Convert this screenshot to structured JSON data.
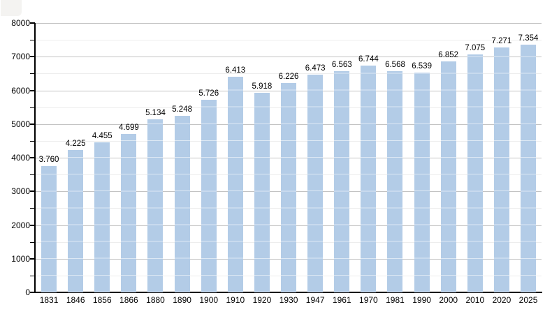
{
  "chart_data": {
    "type": "bar",
    "title": "",
    "xlabel": "",
    "ylabel": "",
    "categories": [
      "1831",
      "1846",
      "1856",
      "1866",
      "1880",
      "1890",
      "1900",
      "1910",
      "1920",
      "1930",
      "1947",
      "1961",
      "1970",
      "1981",
      "1990",
      "2000",
      "2010",
      "2020",
      "2025"
    ],
    "values": [
      3760,
      4225,
      4455,
      4699,
      5134,
      5248,
      5726,
      6413,
      5918,
      6226,
      6473,
      6563,
      6744,
      6568,
      6539,
      6852,
      7075,
      7271,
      7354
    ],
    "value_labels": [
      "3.760",
      "4.225",
      "4.455",
      "4.699",
      "5.134",
      "5.248",
      "5.726",
      "6.413",
      "5.918",
      "6.226",
      "6.473",
      "6.563",
      "6.744",
      "6.568",
      "6.539",
      "6.852",
      "7.075",
      "7.271",
      "7.354"
    ],
    "ylim": [
      0,
      8000
    ],
    "y_major_step": 1000,
    "y_minor_step": 500,
    "y_tick_labels": [
      "0",
      "1000",
      "2000",
      "3000",
      "4000",
      "5000",
      "6000",
      "7000",
      "8000"
    ],
    "grid": "major+minor",
    "legend": null,
    "colors": {
      "bar_fill": "#b3cce7",
      "bar_stripe": "rgba(255,255,255,0.55)",
      "grid_major": "#c3c3c3",
      "grid_minor": "#ededed",
      "axis": "#000000",
      "text": "#000000",
      "background": "#ffffff"
    }
  }
}
